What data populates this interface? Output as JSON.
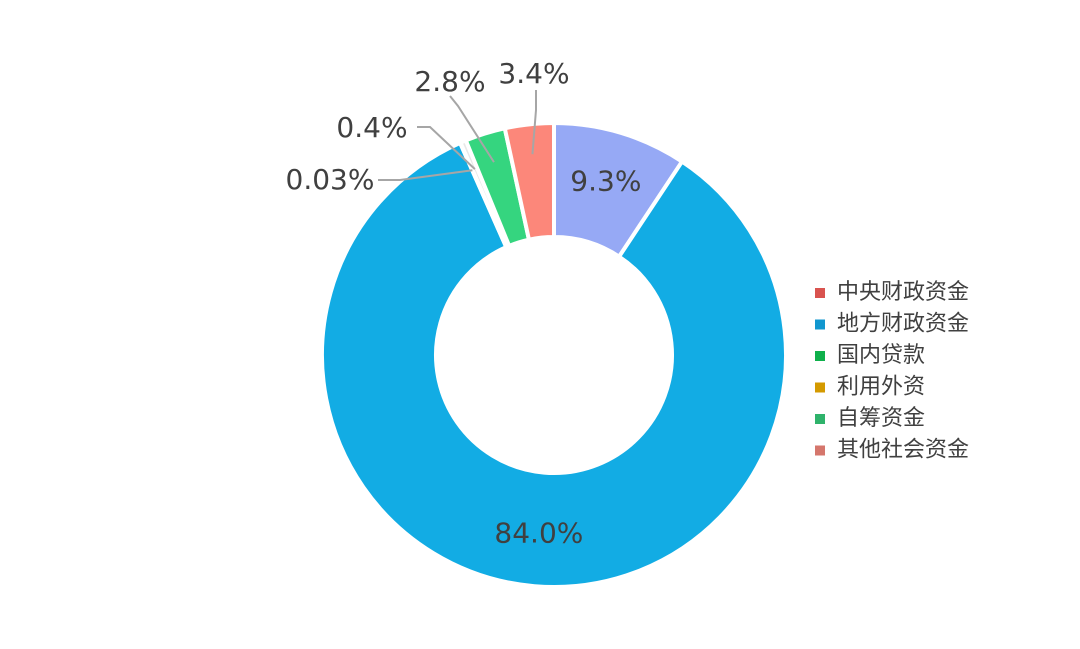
{
  "chart_data": {
    "type": "pie",
    "variant": "donut",
    "title": "",
    "legend_position": "right",
    "slices": [
      {
        "name": "中央财政资金",
        "value": 9.3,
        "label": "9.3%",
        "color": "#96A9F5",
        "legend_color": "#D9534F"
      },
      {
        "name": "地方财政资金",
        "value": 84.0,
        "label": "84.0%",
        "color": "#12ACE4",
        "legend_color": "#1197CF"
      },
      {
        "name": "国内贷款",
        "value": 0.03,
        "label": "0.03%",
        "color": "#0FB04B",
        "legend_color": "#0FB04B"
      },
      {
        "name": "利用外资",
        "value": 0.4,
        "label": "0.4%",
        "color": "#E8E8E8",
        "legend_color": "#D49A00"
      },
      {
        "name": "自筹资金",
        "value": 2.8,
        "label": "2.8%",
        "color": "#35D57F",
        "legend_color": "#2FB36B"
      },
      {
        "name": "其他社会资金",
        "value": 3.4,
        "label": "3.4%",
        "color": "#FC877A",
        "legend_color": "#D5766C"
      }
    ]
  }
}
